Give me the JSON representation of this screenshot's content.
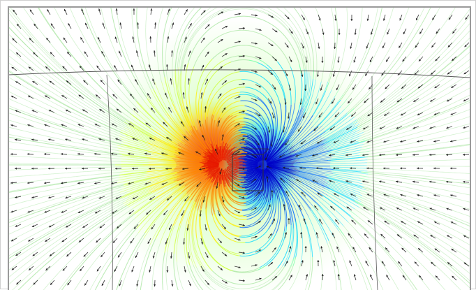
{
  "view": {
    "kind": "magnetic-dipole-field-visualization",
    "colormap": [
      "#0000c8",
      "#0066ff",
      "#00d8ff",
      "#66ff99",
      "#ccff33",
      "#ffee00",
      "#ff8800",
      "#e81a00"
    ],
    "streamline_color_far": "#a8e6a0",
    "arrow_color": "#1a1a1a",
    "outline_color": "#555555",
    "background": "#ffffff"
  }
}
